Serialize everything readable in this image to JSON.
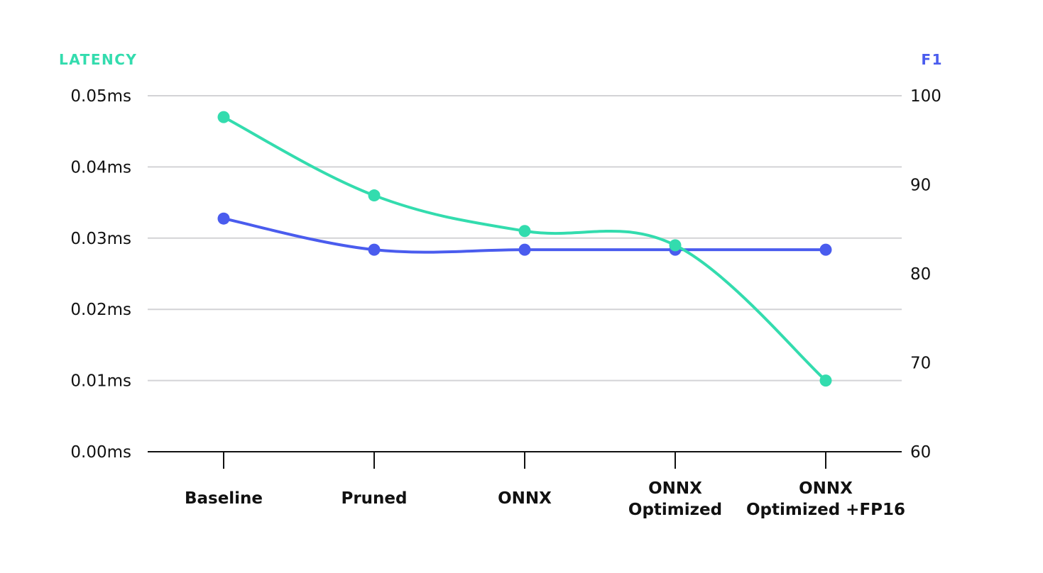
{
  "chart_data": {
    "type": "line",
    "left_axis_title": "LATENCY",
    "right_axis_title": "F1",
    "categories": [
      [
        "Baseline"
      ],
      [
        "Pruned"
      ],
      [
        "ONNX"
      ],
      [
        "ONNX",
        "Optimized"
      ],
      [
        "ONNX",
        "Optimized +FP16"
      ]
    ],
    "left_axis": {
      "ylim": [
        0,
        0.05
      ],
      "ticks": [
        {
          "value": 0.0,
          "label": "0.00ms"
        },
        {
          "value": 0.01,
          "label": "0.01ms"
        },
        {
          "value": 0.02,
          "label": "0.02ms"
        },
        {
          "value": 0.03,
          "label": "0.03ms"
        },
        {
          "value": 0.04,
          "label": "0.04ms"
        },
        {
          "value": 0.05,
          "label": "0.05ms"
        }
      ]
    },
    "right_axis": {
      "ylim": [
        60,
        100
      ],
      "ticks": [
        {
          "value": 60,
          "label": "60"
        },
        {
          "value": 70,
          "label": "70"
        },
        {
          "value": 80,
          "label": "80"
        },
        {
          "value": 90,
          "label": "90"
        },
        {
          "value": 100,
          "label": "100"
        }
      ]
    },
    "series": [
      {
        "axis": "left",
        "color": "#33dcae",
        "values": [
          0.047,
          0.036,
          0.031,
          0.029,
          0.01
        ]
      },
      {
        "axis": "right",
        "color": "#4a5cee",
        "values": [
          86.2,
          82.7,
          82.7,
          82.7,
          82.7
        ]
      }
    ],
    "grid": true
  }
}
